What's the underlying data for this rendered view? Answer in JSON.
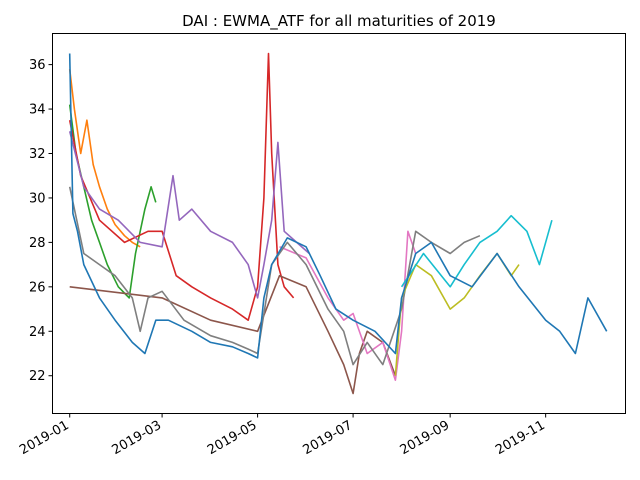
{
  "chart_data": {
    "type": "line",
    "title": "DAI : EWMA_ATF for all maturities of 2019",
    "xlabel": "",
    "ylabel": "",
    "x_range": [
      "2018-12-21",
      "2019-12-22"
    ],
    "y_range": [
      20.3,
      37.4
    ],
    "x_ticks": [
      {
        "date": "2019-01-01",
        "label": "2019-01"
      },
      {
        "date": "2019-03-01",
        "label": "2019-03"
      },
      {
        "date": "2019-05-01",
        "label": "2019-05"
      },
      {
        "date": "2019-07-01",
        "label": "2019-07"
      },
      {
        "date": "2019-09-01",
        "label": "2019-09"
      },
      {
        "date": "2019-11-01",
        "label": "2019-11"
      }
    ],
    "y_ticks": [
      22,
      24,
      26,
      28,
      30,
      32,
      34,
      36
    ],
    "grid": false,
    "legend": "none",
    "series": [
      {
        "color": "#ff7f0e",
        "points": [
          [
            "2019-01-01",
            35.8
          ],
          [
            "2019-01-04",
            34.0
          ],
          [
            "2019-01-08",
            32.0
          ],
          [
            "2019-01-12",
            33.5
          ],
          [
            "2019-01-16",
            31.5
          ],
          [
            "2019-01-20",
            30.5
          ],
          [
            "2019-01-25",
            29.5
          ],
          [
            "2019-01-30",
            28.8
          ],
          [
            "2019-02-05",
            28.3
          ],
          [
            "2019-02-10",
            28.0
          ],
          [
            "2019-02-15",
            27.8
          ]
        ]
      },
      {
        "color": "#2ca02c",
        "points": [
          [
            "2019-01-01",
            34.2
          ],
          [
            "2019-01-05",
            32.0
          ],
          [
            "2019-01-10",
            30.5
          ],
          [
            "2019-01-15",
            29.0
          ],
          [
            "2019-01-20",
            28.0
          ],
          [
            "2019-01-25",
            27.0
          ],
          [
            "2019-02-01",
            26.0
          ],
          [
            "2019-02-08",
            25.5
          ],
          [
            "2019-02-12",
            27.5
          ],
          [
            "2019-02-18",
            29.5
          ],
          [
            "2019-02-22",
            30.5
          ],
          [
            "2019-02-25",
            29.8
          ]
        ]
      },
      {
        "color": "#d62728",
        "points": [
          [
            "2019-01-01",
            33.5
          ],
          [
            "2019-01-08",
            31.0
          ],
          [
            "2019-01-20",
            29.0
          ],
          [
            "2019-02-05",
            28.0
          ],
          [
            "2019-02-20",
            28.5
          ],
          [
            "2019-03-01",
            28.5
          ],
          [
            "2019-03-10",
            26.5
          ],
          [
            "2019-03-20",
            26.0
          ],
          [
            "2019-04-01",
            25.5
          ],
          [
            "2019-04-15",
            25.0
          ],
          [
            "2019-04-25",
            24.5
          ],
          [
            "2019-05-01",
            26.0
          ],
          [
            "2019-05-05",
            30.0
          ],
          [
            "2019-05-08",
            36.5
          ],
          [
            "2019-05-10",
            32.0
          ],
          [
            "2019-05-14",
            27.0
          ],
          [
            "2019-05-18",
            26.0
          ],
          [
            "2019-05-24",
            25.5
          ]
        ]
      },
      {
        "color": "#9467bd",
        "points": [
          [
            "2019-01-01",
            33.0
          ],
          [
            "2019-01-10",
            30.5
          ],
          [
            "2019-01-20",
            29.5
          ],
          [
            "2019-02-01",
            29.0
          ],
          [
            "2019-02-15",
            28.0
          ],
          [
            "2019-03-01",
            27.8
          ],
          [
            "2019-03-08",
            31.0
          ],
          [
            "2019-03-12",
            29.0
          ],
          [
            "2019-03-20",
            29.5
          ],
          [
            "2019-04-01",
            28.5
          ],
          [
            "2019-04-15",
            28.0
          ],
          [
            "2019-04-25",
            27.0
          ],
          [
            "2019-05-01",
            25.5
          ],
          [
            "2019-05-05",
            27.0
          ],
          [
            "2019-05-10",
            29.0
          ],
          [
            "2019-05-14",
            32.5
          ],
          [
            "2019-05-18",
            28.5
          ],
          [
            "2019-05-26",
            28.0
          ],
          [
            "2019-06-03",
            27.5
          ]
        ]
      },
      {
        "color": "#8c564b",
        "points": [
          [
            "2019-01-01",
            26.0
          ],
          [
            "2019-03-01",
            25.5
          ],
          [
            "2019-04-01",
            24.5
          ],
          [
            "2019-05-01",
            24.0
          ],
          [
            "2019-05-15",
            26.5
          ],
          [
            "2019-06-01",
            26.0
          ],
          [
            "2019-06-15",
            24.0
          ],
          [
            "2019-06-25",
            22.5
          ],
          [
            "2019-07-01",
            21.2
          ],
          [
            "2019-07-05",
            23.0
          ],
          [
            "2019-07-10",
            24.0
          ],
          [
            "2019-07-20",
            23.5
          ],
          [
            "2019-07-28",
            22.0
          ]
        ]
      },
      {
        "color": "#e377c2",
        "points": [
          [
            "2019-05-15",
            27.8
          ],
          [
            "2019-06-01",
            27.3
          ],
          [
            "2019-06-15",
            25.5
          ],
          [
            "2019-06-25",
            24.5
          ],
          [
            "2019-07-01",
            24.8
          ],
          [
            "2019-07-10",
            23.0
          ],
          [
            "2019-07-20",
            23.5
          ],
          [
            "2019-07-28",
            21.8
          ],
          [
            "2019-08-01",
            24.0
          ],
          [
            "2019-08-05",
            28.5
          ],
          [
            "2019-08-10",
            27.5
          ]
        ]
      },
      {
        "color": "#7f7f7f",
        "points": [
          [
            "2019-01-01",
            30.5
          ],
          [
            "2019-01-10",
            27.5
          ],
          [
            "2019-01-20",
            27.0
          ],
          [
            "2019-01-30",
            26.5
          ],
          [
            "2019-02-10",
            25.5
          ],
          [
            "2019-02-15",
            24.0
          ],
          [
            "2019-02-20",
            25.5
          ],
          [
            "2019-03-01",
            25.8
          ],
          [
            "2019-03-15",
            24.5
          ],
          [
            "2019-04-01",
            23.8
          ],
          [
            "2019-04-15",
            23.5
          ],
          [
            "2019-04-25",
            23.2
          ],
          [
            "2019-05-01",
            23.0
          ],
          [
            "2019-05-10",
            27.0
          ],
          [
            "2019-05-20",
            28.0
          ],
          [
            "2019-06-01",
            27.0
          ],
          [
            "2019-06-15",
            25.0
          ],
          [
            "2019-06-25",
            24.0
          ],
          [
            "2019-07-01",
            22.5
          ],
          [
            "2019-07-10",
            23.5
          ],
          [
            "2019-07-20",
            22.5
          ],
          [
            "2019-08-01",
            25.0
          ],
          [
            "2019-08-10",
            28.5
          ],
          [
            "2019-08-20",
            28.0
          ],
          [
            "2019-09-01",
            27.5
          ],
          [
            "2019-09-10",
            28.0
          ],
          [
            "2019-09-20",
            28.3
          ]
        ]
      },
      {
        "color": "#bcbd22",
        "points": [
          [
            "2019-07-28",
            22.0
          ],
          [
            "2019-08-01",
            25.5
          ],
          [
            "2019-08-10",
            27.0
          ],
          [
            "2019-08-20",
            26.5
          ],
          [
            "2019-09-01",
            25.0
          ],
          [
            "2019-09-10",
            25.5
          ],
          [
            "2019-09-20",
            26.5
          ],
          [
            "2019-10-01",
            27.5
          ],
          [
            "2019-10-10",
            26.5
          ],
          [
            "2019-10-15",
            27.0
          ]
        ]
      },
      {
        "color": "#17becf",
        "points": [
          [
            "2019-08-01",
            26.0
          ],
          [
            "2019-08-15",
            27.5
          ],
          [
            "2019-09-01",
            26.0
          ],
          [
            "2019-09-10",
            27.0
          ],
          [
            "2019-09-20",
            28.0
          ],
          [
            "2019-10-01",
            28.5
          ],
          [
            "2019-10-10",
            29.2
          ],
          [
            "2019-10-20",
            28.5
          ],
          [
            "2019-10-28",
            27.0
          ],
          [
            "2019-11-05",
            29.0
          ]
        ]
      },
      {
        "color": "#1f77b4",
        "points": [
          [
            "2019-01-01",
            36.5
          ],
          [
            "2019-01-03",
            29.3
          ],
          [
            "2019-01-06",
            28.5
          ],
          [
            "2019-01-10",
            27.0
          ],
          [
            "2019-01-20",
            25.5
          ],
          [
            "2019-01-30",
            24.5
          ],
          [
            "2019-02-10",
            23.5
          ],
          [
            "2019-02-18",
            23.0
          ],
          [
            "2019-02-25",
            24.5
          ],
          [
            "2019-03-05",
            24.5
          ],
          [
            "2019-03-20",
            24.0
          ],
          [
            "2019-04-01",
            23.5
          ],
          [
            "2019-04-15",
            23.3
          ],
          [
            "2019-04-25",
            23.0
          ],
          [
            "2019-05-01",
            22.8
          ],
          [
            "2019-05-05",
            25.5
          ],
          [
            "2019-05-10",
            27.0
          ],
          [
            "2019-05-20",
            28.2
          ],
          [
            "2019-06-01",
            27.8
          ],
          [
            "2019-06-10",
            26.5
          ],
          [
            "2019-06-20",
            25.0
          ],
          [
            "2019-07-01",
            24.5
          ],
          [
            "2019-07-15",
            24.0
          ],
          [
            "2019-07-28",
            23.0
          ],
          [
            "2019-08-01",
            25.5
          ],
          [
            "2019-08-10",
            27.5
          ],
          [
            "2019-08-20",
            28.0
          ],
          [
            "2019-09-01",
            26.5
          ],
          [
            "2019-09-15",
            26.0
          ],
          [
            "2019-10-01",
            27.5
          ],
          [
            "2019-10-15",
            26.0
          ],
          [
            "2019-11-01",
            24.5
          ],
          [
            "2019-11-10",
            24.0
          ],
          [
            "2019-11-20",
            23.0
          ],
          [
            "2019-11-28",
            25.5
          ],
          [
            "2019-12-10",
            24.0
          ]
        ]
      }
    ]
  }
}
